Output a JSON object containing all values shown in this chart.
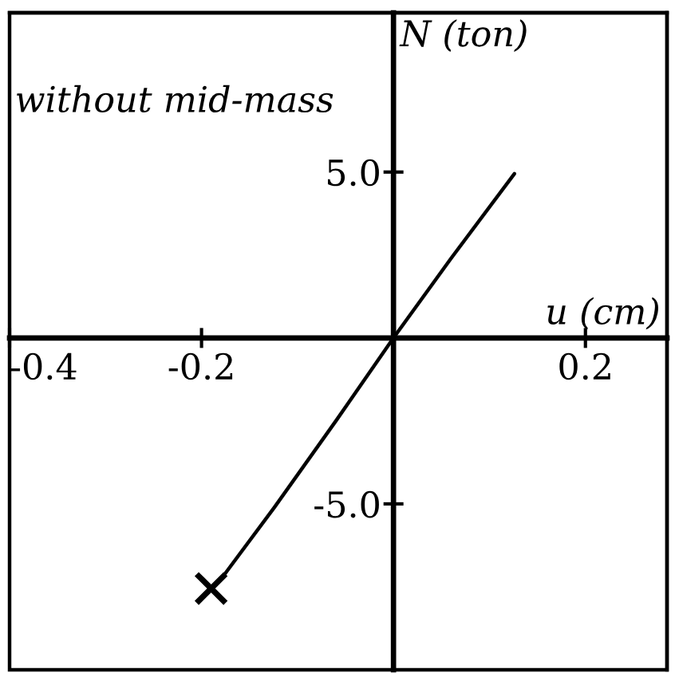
{
  "chart_data": {
    "type": "line",
    "xlabel": "u (cm)",
    "ylabel": "N (ton)",
    "annotations": [
      "without mid-mass"
    ],
    "series": [
      {
        "color": "#000000",
        "marker": "none",
        "line_style": "solid",
        "x": [
          -0.19,
          -0.178,
          -0.124,
          -0.06,
          0,
          0.06,
          0.126
        ],
        "values": [
          -7.55,
          -7.2,
          -5.1,
          -2.5,
          0,
          2.4,
          4.95
        ]
      },
      {
        "type": "scatter",
        "color": "#000000",
        "marker": "cross",
        "x": [
          -0.19
        ],
        "values": [
          -7.55
        ]
      }
    ],
    "xlim": [
      -0.4,
      0.285
    ],
    "ylim": [
      -10,
      9.8
    ],
    "xticks": [
      -0.4,
      -0.2,
      0.2
    ],
    "yticks": [
      {
        "value": -5,
        "label": "-5.0"
      },
      {
        "value": 5,
        "label": "5.0"
      }
    ],
    "grid": false
  }
}
